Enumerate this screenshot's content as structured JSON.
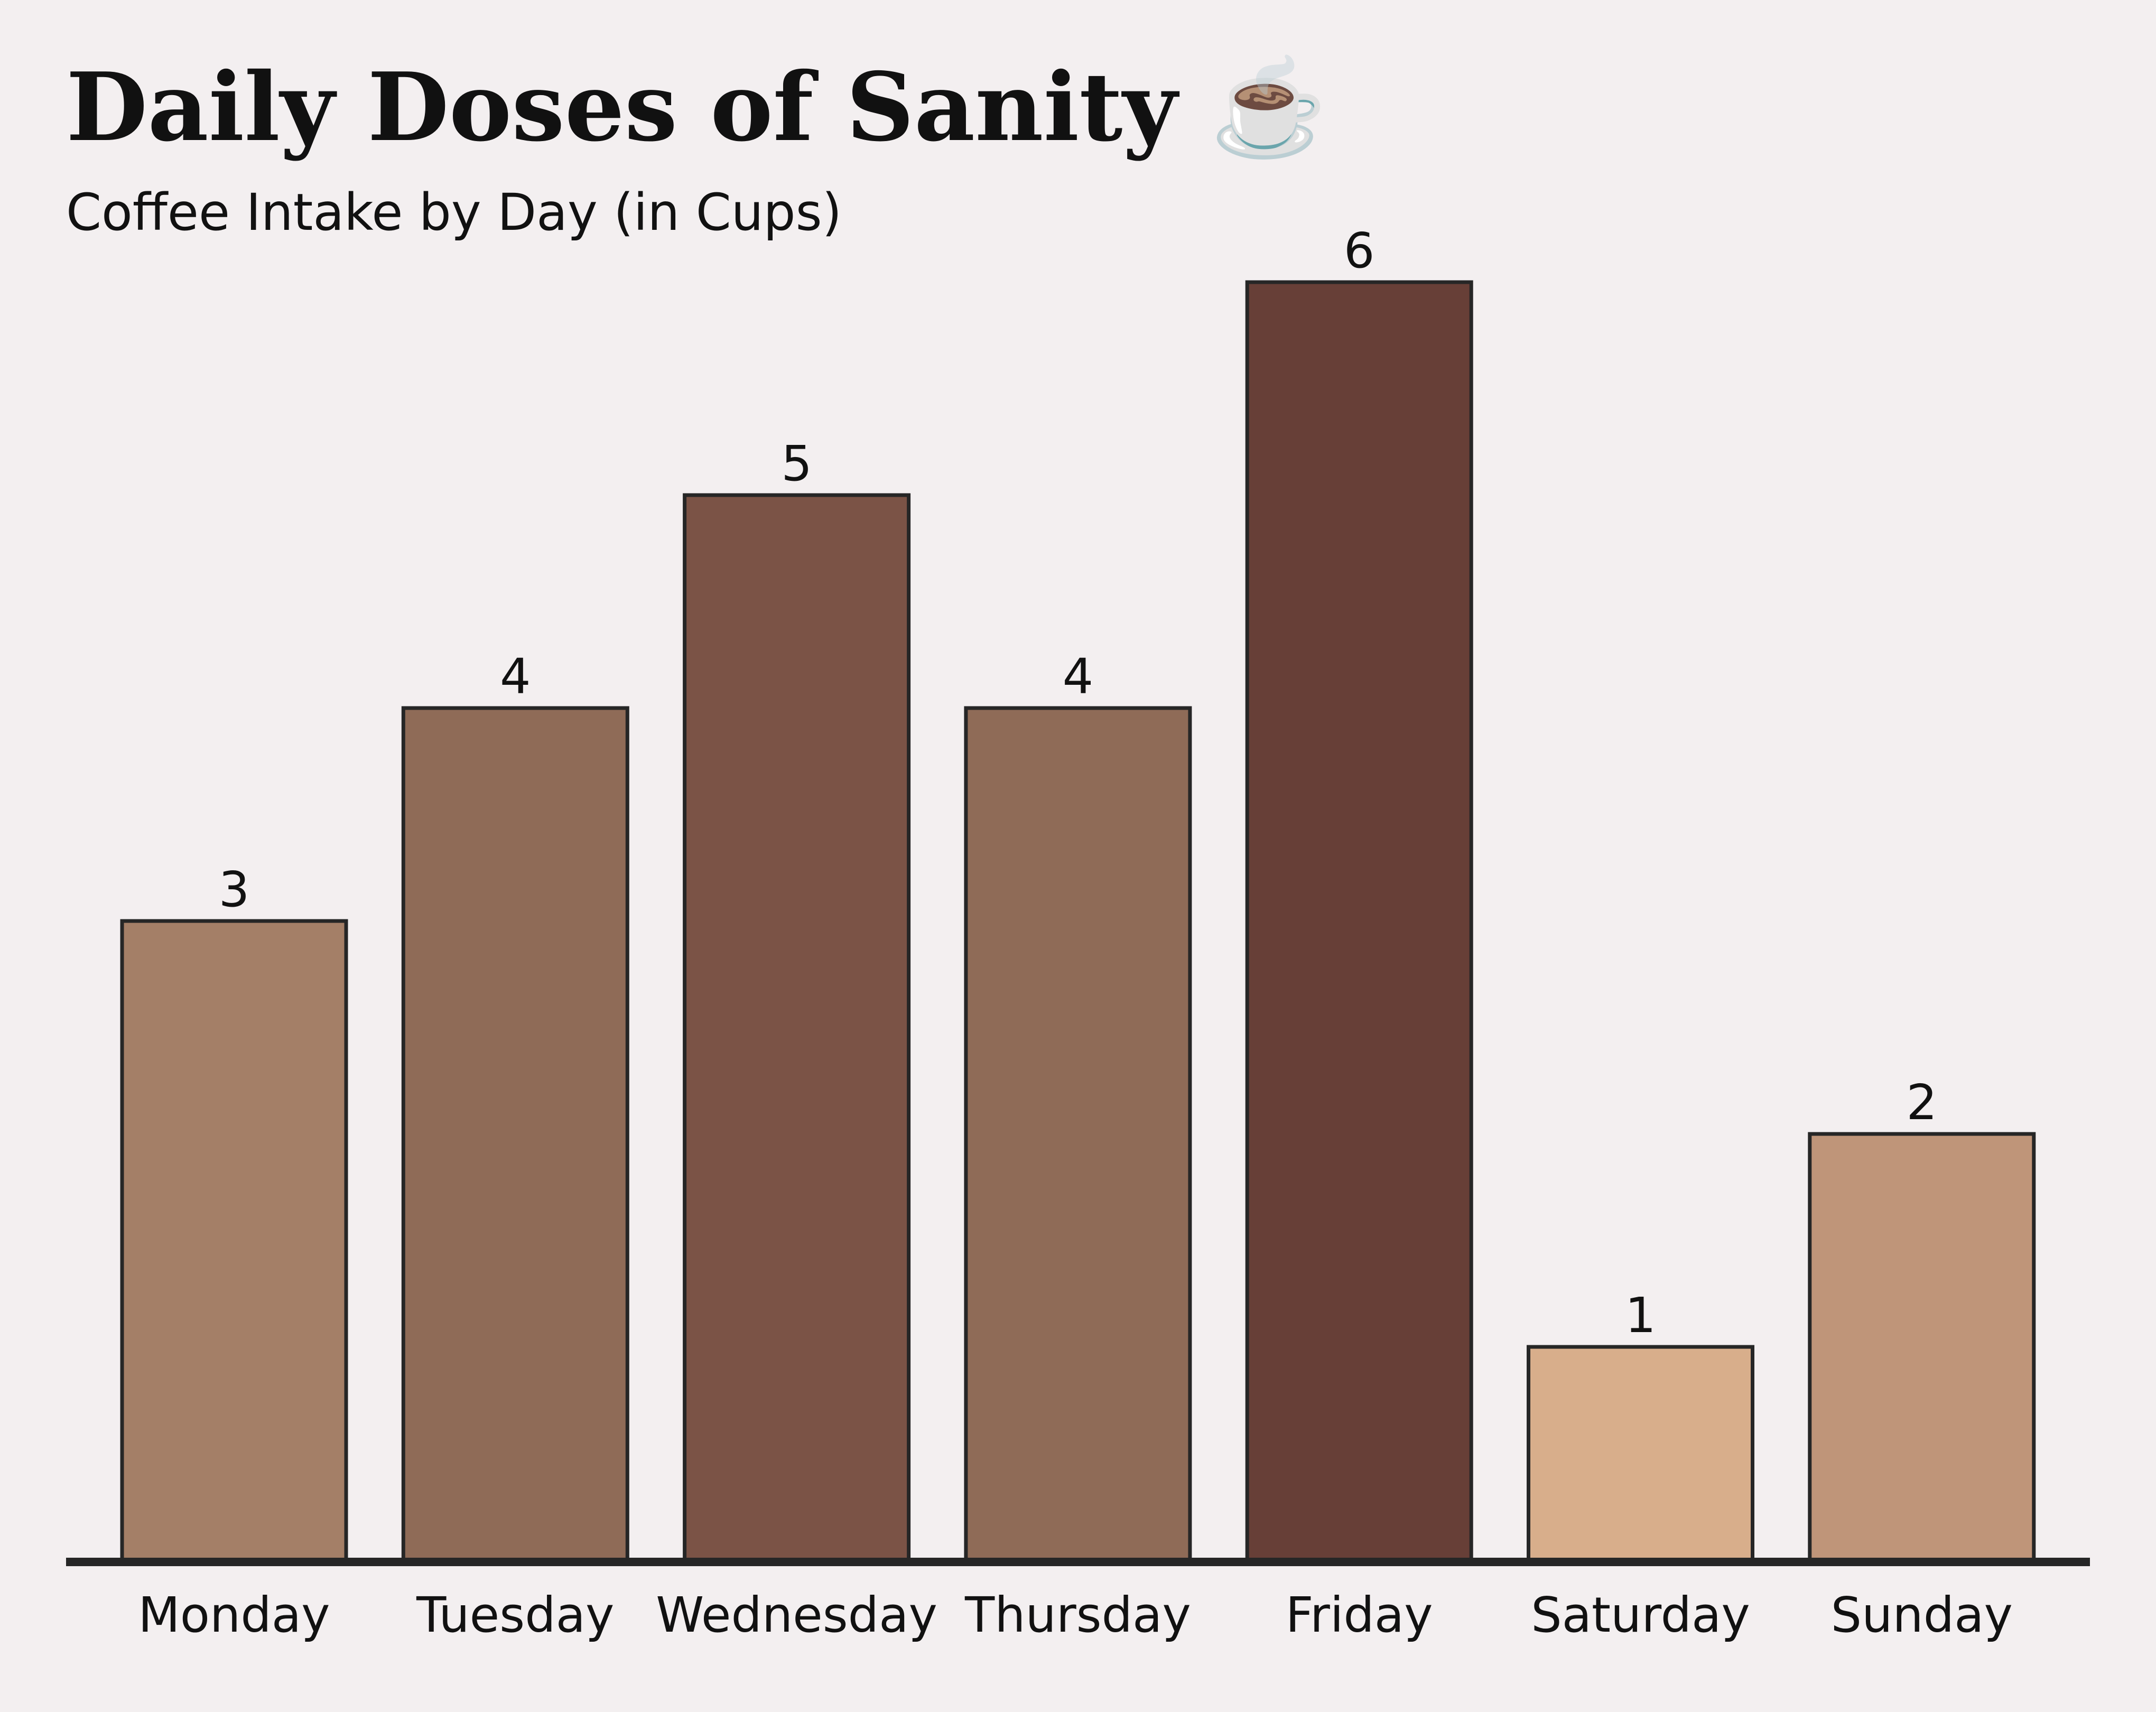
{
  "chart_data": {
    "type": "bar",
    "title": "Daily Doses of Sanity ☕",
    "subtitle": "Coffee Intake by Day (in Cups)",
    "categories": [
      "Monday",
      "Tuesday",
      "Wednesday",
      "Thursday",
      "Friday",
      "Saturday",
      "Sunday"
    ],
    "values": [
      3,
      4,
      5,
      4,
      6,
      1,
      2
    ],
    "data_labels": [
      "3",
      "4",
      "5",
      "4",
      "6",
      "1",
      "2"
    ],
    "colors": [
      "#a47f67",
      "#8f6b57",
      "#7b5346",
      "#8f6b57",
      "#673f37",
      "#d8ae8b",
      "#bf9579"
    ],
    "bar_outline_color": "#262626",
    "axis_color": "#262626",
    "background_color": "#f3eff0",
    "xlabel": "",
    "ylabel": "",
    "ylim": [
      0,
      6
    ],
    "grid": false,
    "legend": "none"
  }
}
